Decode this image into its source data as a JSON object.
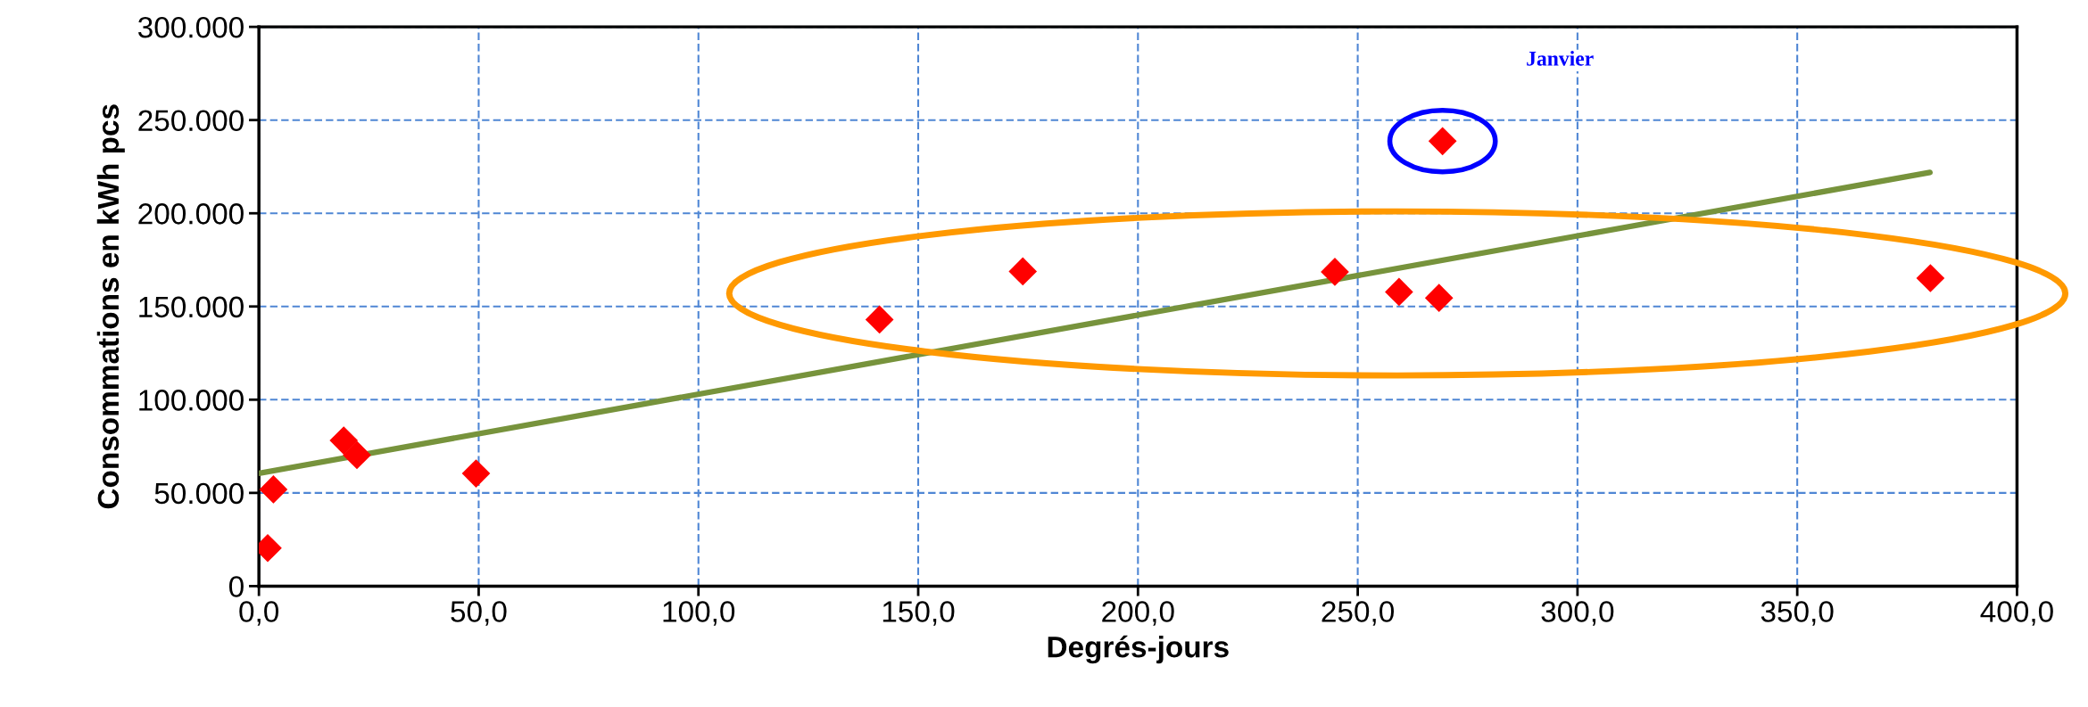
{
  "chart_data": {
    "type": "scatter",
    "xlabel": "Degrés-jours",
    "ylabel": "Consommations en kWh pcs",
    "series": [
      {
        "color": "#ff0000",
        "marker": "diamond",
        "x": [
          2.0,
          3.3,
          19.3,
          22.3,
          49.4,
          141.2,
          173.8,
          244.8,
          259.4,
          268.5,
          269.3,
          380.3
        ],
        "values": [
          20400,
          51900,
          78100,
          70300,
          60400,
          143000,
          168800,
          168600,
          157800,
          154600,
          238700,
          165200
        ]
      },
      {
        "type": "line",
        "color": "#77933c",
        "marker": "none",
        "x": [
          0,
          380.2
        ],
        "values": [
          60500,
          221900
        ]
      }
    ],
    "annotations": [
      "Janvier"
    ],
    "xlim": [
      0,
      400
    ],
    "ylim": [
      0,
      300000
    ],
    "xticks": [
      {
        "value": 0,
        "label": "0,0"
      },
      {
        "value": 50,
        "label": "50,0"
      },
      {
        "value": 100,
        "label": "100,0"
      },
      {
        "value": 150,
        "label": "150,0"
      },
      {
        "value": 200,
        "label": "200,0"
      },
      {
        "value": 250,
        "label": "250,0"
      },
      {
        "value": 300,
        "label": "300,0"
      },
      {
        "value": 350,
        "label": "350,0"
      },
      {
        "value": 400,
        "label": "400,0"
      }
    ],
    "yticks": [
      0,
      {
        "value": 50000,
        "label": "50.000"
      },
      {
        "value": 100000,
        "label": "100.000"
      },
      {
        "value": 150000,
        "label": "150.000"
      },
      {
        "value": 200000,
        "label": "200.000"
      },
      {
        "value": 250000,
        "label": "250.000"
      },
      {
        "value": 300000,
        "label": "300.000"
      }
    ],
    "grid": true,
    "legend": false
  }
}
